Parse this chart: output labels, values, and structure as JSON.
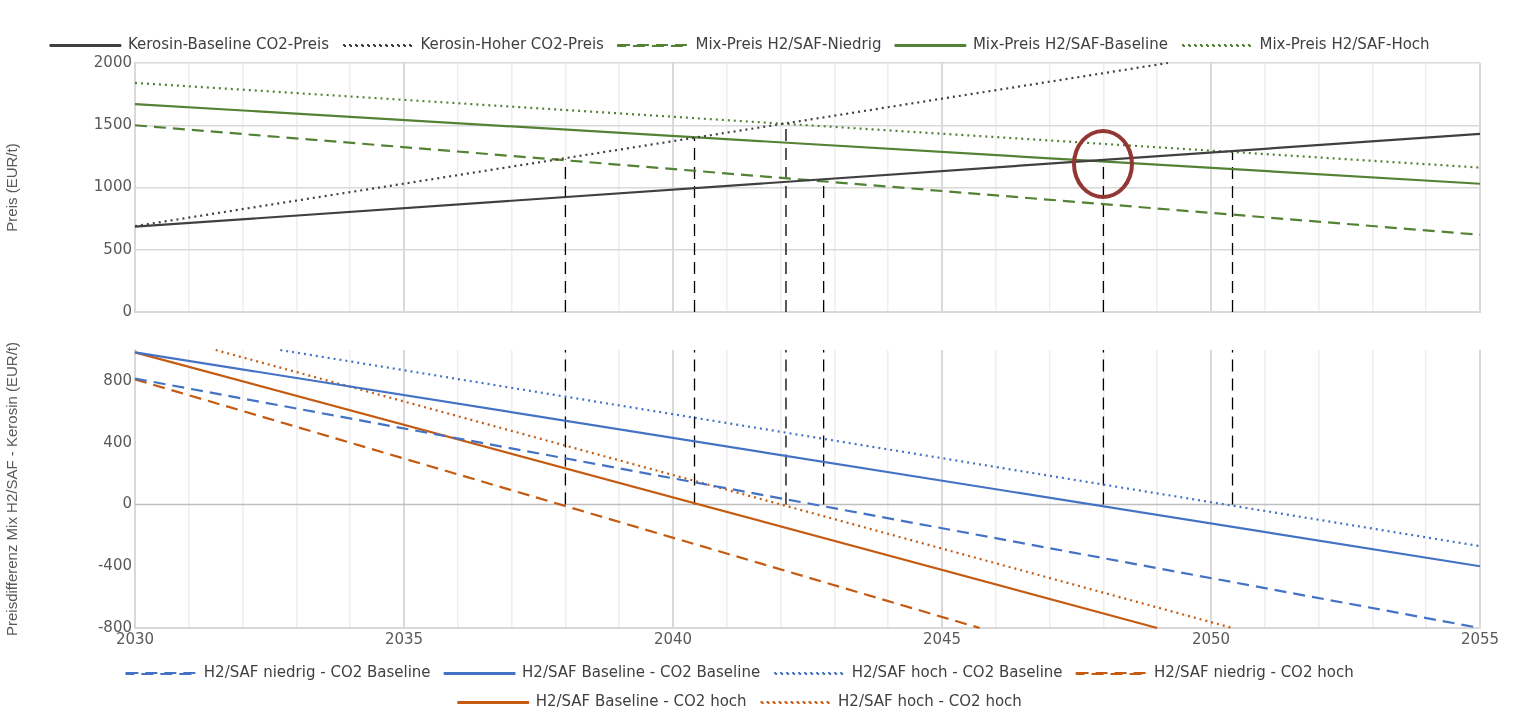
{
  "chart_data": [
    {
      "type": "line",
      "ylabel": "Preis (EUR/t)",
      "xlim": [
        2030,
        2055
      ],
      "xticks": [
        2030,
        {
          "value": 2031,
          "label": null
        },
        {
          "value": 2032,
          "label": null
        },
        {
          "value": 2033,
          "label": null
        },
        {
          "value": 2034,
          "label": null
        },
        2035,
        {
          "value": 2036,
          "label": null
        },
        {
          "value": 2037,
          "label": null
        },
        {
          "value": 2038,
          "label": null
        },
        {
          "value": 2039,
          "label": null
        },
        2040,
        {
          "value": 2041,
          "label": null
        },
        {
          "value": 2042,
          "label": null
        },
        {
          "value": 2043,
          "label": null
        },
        {
          "value": 2044,
          "label": null
        },
        2045,
        {
          "value": 2046,
          "label": null
        },
        {
          "value": 2047,
          "label": null
        },
        {
          "value": 2048,
          "label": null
        },
        {
          "value": 2049,
          "label": null
        },
        2050,
        {
          "value": 2051,
          "label": null
        },
        {
          "value": 2052,
          "label": null
        },
        {
          "value": 2053,
          "label": null
        },
        {
          "value": 2054,
          "label": null
        },
        2055
      ],
      "ylim": [
        0,
        2000
      ],
      "yticks": [
        0,
        500,
        1000,
        1500,
        2000
      ],
      "grid": true,
      "legend": "top",
      "tick_labels": "y",
      "marker": "none",
      "series": [
        {
          "name": "Kerosin-Baseline CO2-Preis",
          "color": "#404040",
          "line_style": "solid",
          "x": [
            2030,
            2055
          ],
          "values": [
            685,
            1430
          ]
        },
        {
          "name": "Kerosin-Hoher CO2-Preis",
          "color": "#404040",
          "line_style": "dotted",
          "x": [
            2030,
            2049.2
          ],
          "values": [
            690,
            2000
          ]
        },
        {
          "name": "Mix-Preis H2/SAF-Niedrig",
          "color": "#548235",
          "line_style": "dashed",
          "x": [
            2030,
            2055
          ],
          "values": [
            1500,
            620
          ]
        },
        {
          "name": "Mix-Preis H2/SAF-Baseline",
          "color": "#548235",
          "line_style": "solid",
          "x": [
            2030,
            2055
          ],
          "values": [
            1670,
            1030
          ]
        },
        {
          "name": "Mix-Preis H2/SAF-Hoch",
          "color": "#548235",
          "line_style": "dotted",
          "x": [
            2030,
            2055
          ],
          "values": [
            1840,
            1160
          ]
        },
        {
          "color": "#000000",
          "line_style": "dashed",
          "x": [
            2038,
            2038
          ],
          "values": [
            0,
            1225
          ]
        },
        {
          "color": "#000000",
          "line_style": "dashed",
          "x": [
            2040.4,
            2040.4
          ],
          "values": [
            0,
            1400
          ]
        },
        {
          "color": "#000000",
          "line_style": "dashed",
          "x": [
            2042.1,
            2042.1
          ],
          "values": [
            0,
            1510
          ]
        },
        {
          "color": "#000000",
          "line_style": "dashed",
          "x": [
            2042.8,
            2042.8
          ],
          "values": [
            0,
            1065
          ]
        },
        {
          "color": "#000000",
          "line_style": "dashed",
          "x": [
            2048,
            2048
          ],
          "values": [
            0,
            1220
          ]
        },
        {
          "color": "#000000",
          "line_style": "dashed",
          "x": [
            2050.4,
            2050.4
          ],
          "values": [
            0,
            1290
          ]
        }
      ]
    },
    {
      "type": "line",
      "ylabel": "Preisdifferenz Mix H2/SAF - Kerosin (EUR/t)",
      "xlim": [
        2030,
        2055
      ],
      "xticks": [
        2030,
        {
          "value": 2031,
          "label": null
        },
        {
          "value": 2032,
          "label": null
        },
        {
          "value": 2033,
          "label": null
        },
        {
          "value": 2034,
          "label": null
        },
        2035,
        {
          "value": 2036,
          "label": null
        },
        {
          "value": 2037,
          "label": null
        },
        {
          "value": 2038,
          "label": null
        },
        {
          "value": 2039,
          "label": null
        },
        2040,
        {
          "value": 2041,
          "label": null
        },
        {
          "value": 2042,
          "label": null
        },
        {
          "value": 2043,
          "label": null
        },
        {
          "value": 2044,
          "label": null
        },
        2045,
        {
          "value": 2046,
          "label": null
        },
        {
          "value": 2047,
          "label": null
        },
        {
          "value": 2048,
          "label": null
        },
        {
          "value": 2049,
          "label": null
        },
        2050,
        {
          "value": 2051,
          "label": null
        },
        {
          "value": 2052,
          "label": null
        },
        {
          "value": 2053,
          "label": null
        },
        {
          "value": 2054,
          "label": null
        },
        2055
      ],
      "ylim": [
        -800,
        1000
      ],
      "yticks": [
        -800,
        -400,
        0,
        400,
        800
      ],
      "grid": "x",
      "legend": "bottom",
      "marker": "none",
      "ref_lines": [
        {
          "axis": "y",
          "value": 0,
          "color": "#bfbfbf"
        }
      ],
      "series": [
        {
          "name": "H2/SAF niedrig - CO2 Baseline",
          "color": "#4472c4",
          "line_style": "dashed",
          "x": [
            2030,
            2055
          ],
          "values": [
            815,
            -800
          ]
        },
        {
          "name": "H2/SAF Baseline - CO2 Baseline",
          "color": "#4472c4",
          "line_style": "solid",
          "x": [
            2030,
            2055
          ],
          "values": [
            985,
            -400
          ]
        },
        {
          "name": "H2/SAF hoch - CO2 Baseline",
          "color": "#4472c4",
          "line_style": "dotted",
          "x": [
            2032.7,
            2055
          ],
          "values": [
            1000,
            -270
          ]
        },
        {
          "name": "H2/SAF niedrig - CO2 hoch",
          "color": "#c55a11",
          "line_style": "dashed",
          "x": [
            2030,
            2045.7
          ],
          "values": [
            810,
            -800
          ]
        },
        {
          "name": "H2/SAF Baseline - CO2 hoch",
          "color": "#c55a11",
          "line_style": "solid",
          "x": [
            2030,
            2049.0
          ],
          "values": [
            985,
            -800
          ]
        },
        {
          "name": "H2/SAF hoch - CO2 hoch",
          "color": "#c55a11",
          "line_style": "dotted",
          "x": [
            2031.5,
            2050.4
          ],
          "values": [
            1000,
            -800
          ]
        },
        {
          "color": "#000000",
          "line_style": "dashed",
          "x": [
            2038,
            2038
          ],
          "values": [
            0,
            1000
          ]
        },
        {
          "color": "#000000",
          "line_style": "dashed",
          "x": [
            2040.4,
            2040.4
          ],
          "values": [
            0,
            1000
          ]
        },
        {
          "color": "#000000",
          "line_style": "dashed",
          "x": [
            2042.1,
            2042.1
          ],
          "values": [
            0,
            1000
          ]
        },
        {
          "color": "#000000",
          "line_style": "dashed",
          "x": [
            2042.8,
            2042.8
          ],
          "values": [
            0,
            1000
          ]
        },
        {
          "color": "#000000",
          "line_style": "dashed",
          "x": [
            2048,
            2048
          ],
          "values": [
            0,
            1000
          ]
        },
        {
          "color": "#000000",
          "line_style": "dashed",
          "x": [
            2050.4,
            2050.4
          ],
          "values": [
            0,
            1000
          ]
        }
      ]
    }
  ]
}
